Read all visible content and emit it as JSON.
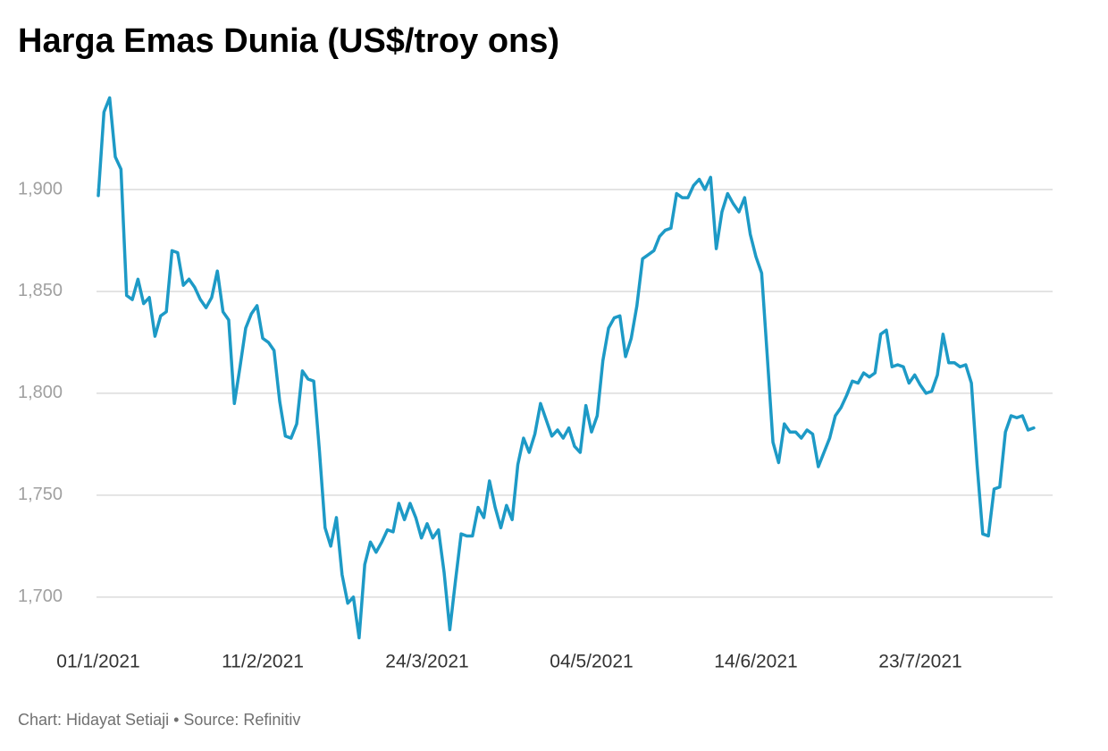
{
  "chart_data": {
    "type": "line",
    "title": "Harga Emas Dunia (US$/troy ons)",
    "footer": "Chart: Hidayat Setiaji • Source: Refinitiv",
    "categories": [
      "01/1/2021",
      null,
      null,
      null,
      null,
      null,
      null,
      null,
      null,
      null,
      null,
      null,
      null,
      null,
      null,
      null,
      null,
      null,
      null,
      null,
      null,
      null,
      null,
      null,
      null,
      null,
      null,
      null,
      null,
      "11/2/2021",
      null,
      null,
      null,
      null,
      null,
      null,
      null,
      null,
      null,
      null,
      null,
      null,
      null,
      null,
      null,
      null,
      null,
      null,
      null,
      null,
      null,
      null,
      null,
      null,
      null,
      null,
      null,
      null,
      "24/3/2021",
      null,
      null,
      null,
      null,
      null,
      null,
      null,
      null,
      null,
      null,
      null,
      null,
      null,
      null,
      null,
      null,
      null,
      null,
      null,
      null,
      null,
      null,
      null,
      null,
      null,
      null,
      null,
      null,
      "04/5/2021",
      null,
      null,
      null,
      null,
      null,
      null,
      null,
      null,
      null,
      null,
      null,
      null,
      null,
      null,
      null,
      null,
      null,
      null,
      null,
      null,
      null,
      null,
      null,
      null,
      null,
      null,
      null,
      null,
      "14/6/2021",
      null,
      null,
      null,
      null,
      null,
      null,
      null,
      null,
      null,
      null,
      null,
      null,
      null,
      null,
      null,
      null,
      null,
      null,
      null,
      null,
      null,
      null,
      null,
      null,
      null,
      null,
      null,
      null,
      "23/7/2021",
      null,
      null,
      null,
      null,
      null,
      null,
      null,
      null,
      null,
      null,
      null,
      null,
      null,
      null,
      null,
      null,
      null,
      null,
      null,
      null
    ],
    "series": [
      {
        "color": "#1d9ac6",
        "values": [
          1897,
          1938,
          1945,
          1916,
          1910,
          1848,
          1846,
          1856,
          1844,
          1847,
          1828,
          1838,
          1840,
          1870,
          1869,
          1853,
          1856,
          1852,
          1846,
          1842,
          1847,
          1860,
          1840,
          1836,
          1795,
          1813,
          1832,
          1839,
          1843,
          1827,
          1825,
          1821,
          1796,
          1779,
          1778,
          1785,
          1811,
          1807,
          1806,
          1772,
          1734,
          1725,
          1739,
          1711,
          1697,
          1700,
          1680,
          1716,
          1727,
          1722,
          1727,
          1733,
          1732,
          1746,
          1738,
          1746,
          1739,
          1729,
          1736,
          1729,
          1733,
          1712,
          1684,
          1708,
          1731,
          1730,
          1730,
          1744,
          1739,
          1757,
          1744,
          1734,
          1745,
          1738,
          1765,
          1778,
          1771,
          1780,
          1795,
          1787,
          1779,
          1782,
          1778,
          1783,
          1774,
          1771,
          1794,
          1781,
          1789,
          1816,
          1832,
          1837,
          1838,
          1818,
          1827,
          1843,
          1866,
          1868,
          1870,
          1877,
          1880,
          1881,
          1898,
          1896,
          1896,
          1902,
          1905,
          1900,
          1906,
          1871,
          1889,
          1898,
          1893,
          1889,
          1896,
          1878,
          1867,
          1859,
          1818,
          1776,
          1766,
          1785,
          1781,
          1781,
          1778,
          1782,
          1780,
          1764,
          1771,
          1778,
          1789,
          1793,
          1799,
          1806,
          1805,
          1810,
          1808,
          1810,
          1829,
          1831,
          1813,
          1814,
          1813,
          1805,
          1809,
          1804,
          1800,
          1801,
          1809,
          1829,
          1815,
          1815,
          1813,
          1814,
          1805,
          1765,
          1731,
          1730,
          1753,
          1754,
          1781,
          1789,
          1788,
          1789,
          1782,
          1783
        ]
      }
    ],
    "ylim": [
      1678,
      1950
    ],
    "yticks": [
      {
        "value": 1700,
        "label": "1,700"
      },
      {
        "value": 1750,
        "label": "1,750"
      },
      {
        "value": 1800,
        "label": "1,800"
      },
      {
        "value": 1850,
        "label": "1,850"
      },
      {
        "value": 1900,
        "label": "1,900"
      }
    ],
    "grid": true
  }
}
